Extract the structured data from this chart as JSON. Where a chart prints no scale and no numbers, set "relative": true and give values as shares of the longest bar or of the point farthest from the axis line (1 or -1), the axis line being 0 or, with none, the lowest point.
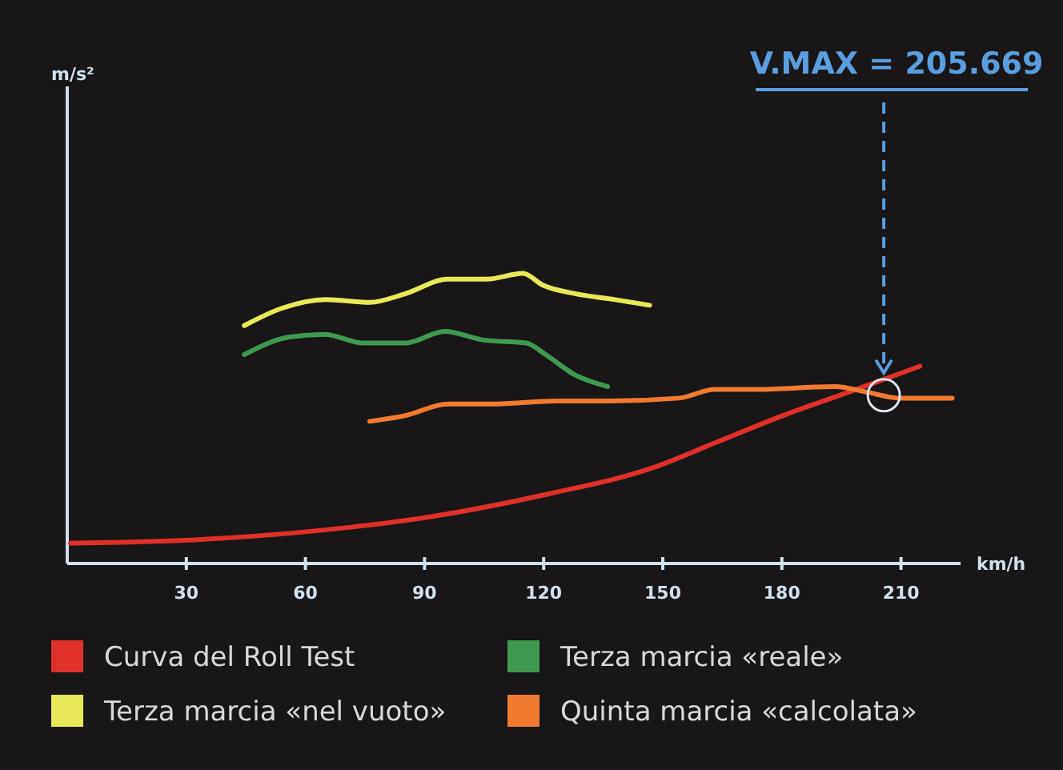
{
  "chart_data": {
    "type": "line",
    "relative": true,
    "xlabel": "km/h",
    "annotations": [
      "m/s²"
    ],
    "xlim": [
      0,
      225
    ],
    "xticks": [
      30,
      60,
      90,
      120,
      150,
      180,
      210
    ],
    "grid": false,
    "legend": "bottom",
    "marker": "none",
    "line_style": "solid",
    "ref_lines": [
      {
        "axis": "x",
        "value": 205.669,
        "label": "V.MAX = 205.669",
        "color": "#5a9ee0",
        "line_style": "dashed"
      }
    ],
    "series": [
      {
        "name": "Curva del Roll Test",
        "color": "#e0302a",
        "x": [
          0.8,
          29.5,
          60.7,
          91,
          121.3,
          147.5,
          163.9,
          180.3,
          196.7,
          214.8
        ],
        "values": [
          0.07,
          0.08,
          0.11,
          0.16,
          0.24,
          0.33,
          0.42,
          0.51,
          0.59,
          0.68
        ]
      },
      {
        "name": "Terza marcia «reale»",
        "color": "#3f9a50",
        "x": [
          44.6,
          55.7,
          64.8,
          74.6,
          85.2,
          95.1,
          104.9,
          115.6,
          120.5,
          127.9,
          136.1
        ],
        "values": [
          0.72,
          0.78,
          0.79,
          0.76,
          0.76,
          0.8,
          0.77,
          0.76,
          0.72,
          0.65,
          0.61
        ]
      },
      {
        "name": "Terza marcia «nel vuoto»",
        "color": "#e8e85a",
        "x": [
          44.6,
          54.1,
          65.1,
          76.2,
          85.2,
          95.9,
          105.7,
          114.8,
          119.7,
          127.9,
          137.7,
          146.7
        ],
        "values": [
          0.82,
          0.88,
          0.91,
          0.9,
          0.93,
          0.98,
          0.98,
          1,
          0.96,
          0.93,
          0.91,
          0.89
        ]
      },
      {
        "name": "Quinta marcia «calcolata»",
        "color": "#f07a30",
        "x": [
          76.2,
          85.2,
          95.9,
          108.2,
          123,
          136.1,
          154.1,
          163.1,
          173.8,
          193.4,
          201.6,
          209.8,
          222.9
        ],
        "values": [
          0.49,
          0.51,
          0.55,
          0.55,
          0.56,
          0.56,
          0.57,
          0.6,
          0.6,
          0.61,
          0.59,
          0.57,
          0.57
        ]
      }
    ]
  }
}
